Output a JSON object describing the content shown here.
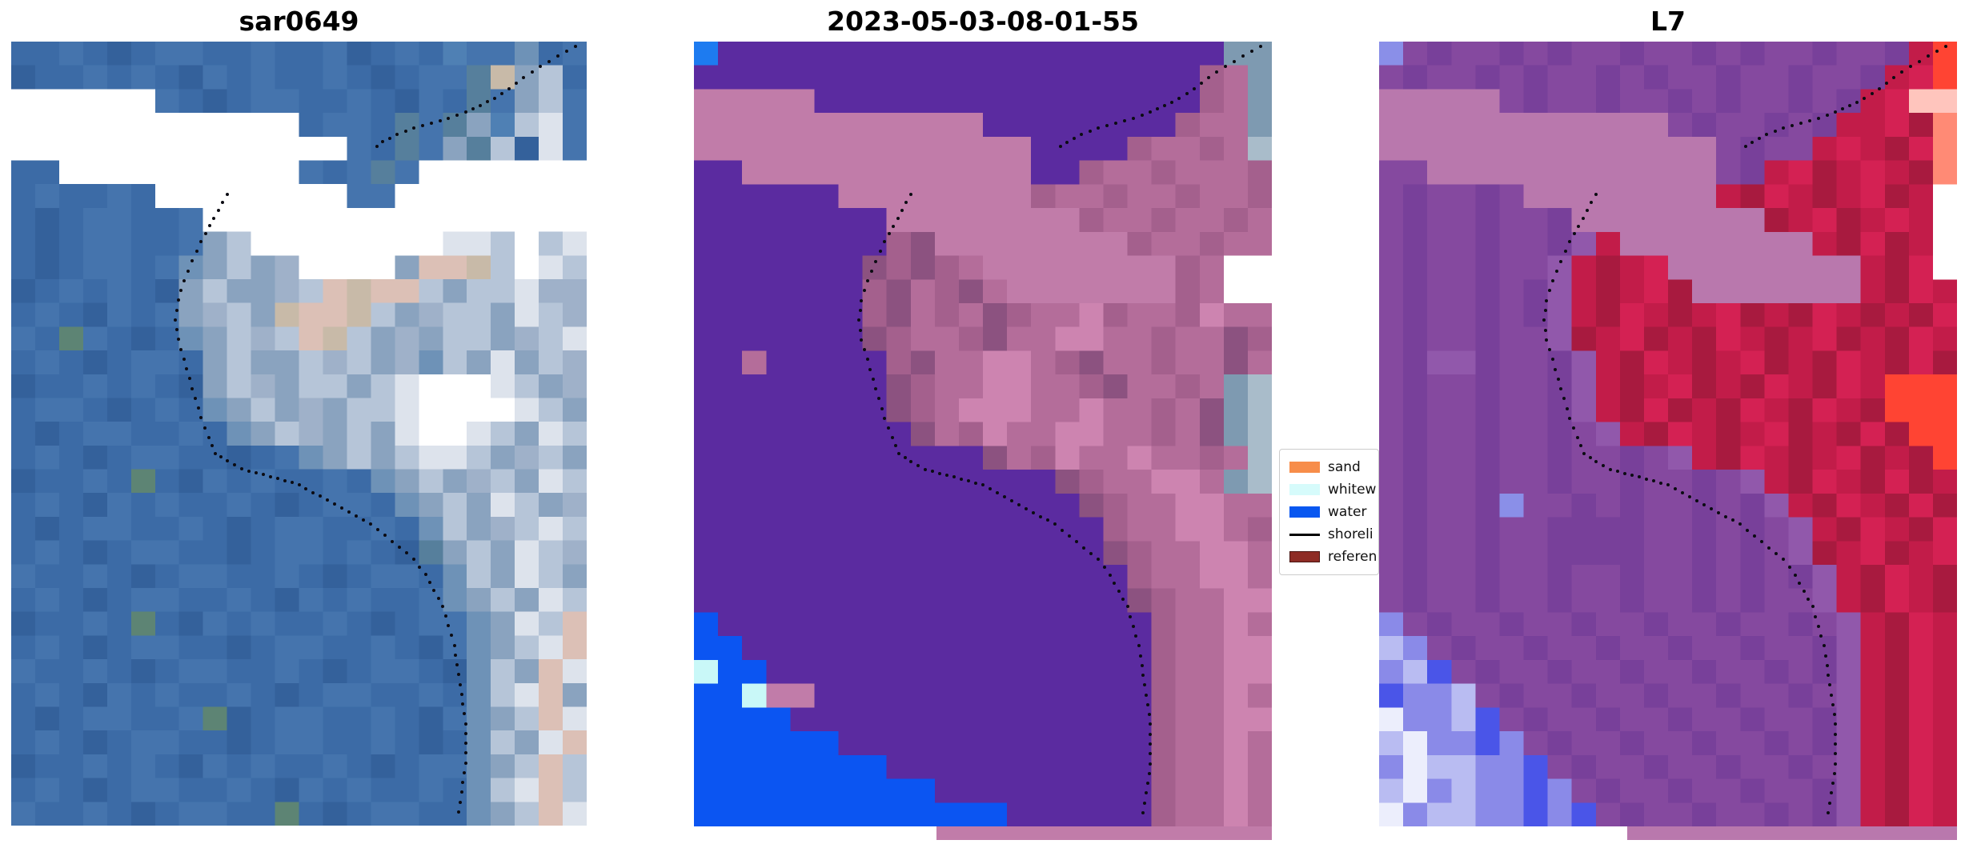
{
  "figure": {
    "background": "#ffffff"
  },
  "shoreline_color": "#0b0b12",
  "palette": {
    ".": "#ffffff",
    "j": "#ffffff",
    "a": "#3c6ba6",
    "b": "#4574ad",
    "c": "#34619b",
    "d": "#4f80b4",
    "e": "#567f9c",
    "f": "#5d8474",
    "g": "#8aa3bf",
    "h": "#b6c5d8",
    "i": "#dde3ec",
    "k": "#c8baa8",
    "l": "#dcc0b6",
    "m": "#9fb1c9",
    "n": "#6e92b7",
    "P": "#5b2ba0",
    "B": "#0b55f2",
    "C": "#1d7bf0",
    "M": "#c17ca9",
    "N": "#a4608d",
    "O": "#b46d9a",
    "R": "#cd84b0",
    "S": "#8c5280",
    "T": "#7e9ab1",
    "U": "#a9bcca",
    "X": "#c9f8f8",
    "p": "#85499f",
    "q": "#78409a",
    "r": "#9158ab",
    "s": "#8a8fe8",
    "t": "#b978ad",
    "u": "#c21c49",
    "v": "#a81a3f",
    "w": "#d42153",
    "x": "#ff4433",
    "y": "#ff8a75",
    "z": "#ffc5bd",
    "1": "#4a55e8",
    "2": "#8a8ae8",
    "3": "#b9bcf2",
    "4": "#eceefc"
  },
  "shorelines": {
    "upper": [
      [
        98,
        0.6
      ],
      [
        95,
        1.8
      ],
      [
        92,
        3.2
      ],
      [
        89,
        4.6
      ],
      [
        86.5,
        6
      ],
      [
        84,
        7.2
      ],
      [
        81.5,
        8.2
      ],
      [
        79,
        9
      ],
      [
        76,
        9.8
      ],
      [
        73,
        10.4
      ],
      [
        70,
        11
      ],
      [
        67,
        11.8
      ],
      [
        64.5,
        12.8
      ],
      [
        62.5,
        14
      ]
    ],
    "main": [
      [
        37.5,
        19.5
      ],
      [
        36,
        21.5
      ],
      [
        34.5,
        23.5
      ],
      [
        33,
        25.5
      ],
      [
        31.5,
        28
      ],
      [
        30,
        30.5
      ],
      [
        29,
        33
      ],
      [
        28.5,
        35.5
      ],
      [
        29,
        38
      ],
      [
        30,
        40.5
      ],
      [
        31,
        43
      ],
      [
        32,
        45.5
      ],
      [
        33,
        48
      ],
      [
        34.3,
        50.5
      ],
      [
        35.5,
        52.5
      ],
      [
        37.5,
        53.5
      ],
      [
        40,
        54.5
      ],
      [
        42.5,
        55
      ],
      [
        45,
        55.5
      ],
      [
        47.5,
        56
      ],
      [
        50,
        56.5
      ],
      [
        52.5,
        57.5
      ],
      [
        55,
        58.5
      ],
      [
        57.5,
        59.5
      ],
      [
        60,
        60.5
      ],
      [
        62.5,
        61.5
      ],
      [
        65,
        63
      ],
      [
        67.5,
        64.5
      ],
      [
        70,
        66
      ],
      [
        72,
        68
      ],
      [
        73.5,
        70
      ],
      [
        75,
        72
      ],
      [
        76,
        74.5
      ],
      [
        77,
        77
      ],
      [
        77.5,
        79.5
      ],
      [
        78,
        82
      ],
      [
        78.5,
        84.5
      ],
      [
        79,
        87
      ],
      [
        79,
        89.5
      ],
      [
        79,
        92
      ],
      [
        78.5,
        94.5
      ],
      [
        78,
        97
      ],
      [
        77.5,
        99.5
      ]
    ]
  },
  "panels": [
    {
      "id": "sar0649",
      "title": "sar0649",
      "shorelines": [
        "upper",
        "main"
      ],
      "grid": [
        "aabacabbaabaabcabadbbnab",
        "caababacbabaabacabbekgha",
        "jjjjjjbacabbaabacbaebghb",
        "jjjjjjjjjjjjabbaebegdhib",
        "jjjjjjjjjjjjjjbaebgehcib",
        "aajjjjjjjjjjbabebjjjjjjj",
        "abaabajjjjjjjjbbjjjjjjjj",
        "acabbaabjjjjjjjjjjjjjjjj",
        "acabbaabghjjjjjjjjiihjhi",
        "acabbabnghgmjjjjgllkhjih",
        "cababacghggmhlkllhghhimm",
        "abacbabgmhgkllkhgmhhgihm",
        "bafbacanghmhlkhgmghhgmhi",
        "abacabbaghgghmhgmnhgighm",
        "caababacghmghhghijjjihgm",
        "abbacabanghgmghhijjjjihg",
        "acabbaabanghmghgijjihgih",
        "abacabbaacabnghghiihgmhg",
        "caabafacbabaabanghgmhgih",
        "abacbabaabacabbanghgihgm",
        "acabbaabacabbaabanhgmhih",
        "abacabbaacabbabaceghgihm",
        "baabacabbaabacabbanhgihg",
        "abacabbaabacbabaabnghgih",
        "caabafacbabaabacabbngihl",
        "abacabbaacabbaabacbnghil",
        "baabacabbaabacabbacnhgli",
        "abacbabaabacabbaabanhilg",
        "acabbaabfcabbaabacbnghli",
        "abacabbaacabbaabacanhgil",
        "caababacbabaabacabbnghlh",
        "abacabbaabacbabaabanhilh",
        "baabacabbaafacabbaanghli"
      ]
    },
    {
      "id": "classified",
      "title": "2023-05-03-08-01-55",
      "shorelines": [
        "upper",
        "main"
      ],
      "bottom_strip": {
        "start_pct": 42,
        "color": "M"
      },
      "grid": [
        "CPPPPPPPPPPPPPPPPPPPPPTT",
        "PPPPPPPPPPPPPPPPPPPPPNOT",
        "MMMMMPPPPPPPPPPPPPPPPNOT",
        "MMMMMMMMMMMMPPPPPPPPNOOT",
        "MMMMMMMMMMMMMMPPPPNOONOU",
        "PPMMMMMMMMMMMMPPNOONOOON",
        "PPPPPPMMMMMMMMNOONOONOON",
        "PPPPPPPPMMMMMMMMNOONOONO",
        "PPPPPPPPNSMMMMMMMMNOONOO",
        "PPPPPPPSNSNOMMMMMMMMNO..",
        "PPPPPPPNSONSOMMMMMMMNO..",
        "PPPPPPPNSONOSNOORNOONROO",
        "PPPPPPPSNOONSOORROONOOSN",
        "PPOPPPPPNSOORRONSOONOOSO",
        "PPPPPPPPSNOORROONSOONOTU",
        "PPPPPPPPSNORRROOROONOSTU",
        "PPPPPPPPPSONROORROONOSTU",
        "PPPPPPPPPPPPSONROOROONOU",
        "PPPPPPPPPPPPPPPSNOORROTU",
        "PPPPPPPPPPPPPPPPSNOORROO",
        "PPPPPPPPPPPPPPPPPNOORRON",
        "PPPPPPPPPPPPPPPPPSNOORRO",
        "PPPPPPPPPPPPPPPPPPNOORRO",
        "PPPPPPPPPPPPPPPPPPSNOORR",
        "BPPPPPPPPPPPPPPPPPPNOORO",
        "BBPPPPPPPPPPPPPPPPPNOORR",
        "XBBPPPPPPPPPPPPPPPPNOORR",
        "BBXMMPPPPPPPPPPPPPPNOORO",
        "BBBBPPPPPPPPPPPPPPPNOORR",
        "BBBBBBPPPPPPPPPPPPPNOORO",
        "BBBBBBBBPPPPPPPPPPPNOORO",
        "BBBBBBBBBBPPPPPPPPPNOORO",
        "BBBBBBBBBBBBBPPPPPPNOORO"
      ]
    },
    {
      "id": "l7",
      "title": "L7",
      "shorelines": [
        "upper",
        "main"
      ],
      "bottom_strip": {
        "start_pct": 43,
        "color": "t"
      },
      "grid": [
        "spqppqpqppqppqpqppqppqux",
        "pqppqpqppqpqppqppqppquwx",
        "tttttpqppqppqpqppqpquwzz",
        "ttttttttttttpqppqpquuwvy",
        "ttttttttttttttpqppuwuvwy",
        "ppttttttttttttpquwvuwuvy",
        "pqppqpttttttttuvwuvuwvu.",
        "pqppqppqttttttttvuwvuwu.",
        "pqppqppqruttttttttuvwvu.",
        "pqppqppruvuwttttttttuvw.",
        "pqppqpqruvuwvtttttttuvwu",
        "pqppqpqruvwuvuwvuvwuvuvw",
        "pqppqpprvuwvuvwuvuwvuvwu",
        "pqrrqppqruvwuvuwvuvwuvwv",
        "pqppqppqruvuwvuvwuvwuxxx",
        "pqppqppqruvwvuvwuvwuvxxx",
        "pqppqppqpruvwuvuwvuvwvxx",
        "pqppqppqppqpruvwuvuwvuvx",
        "pqppqppqppqppqpruvwuvwvu",
        "pqppqsppqpqppqpqruvwuvwv",
        "pqppqppqqqqppqpqpruvwuvw",
        "pqppqppqqqqppqpqprvuwvuw",
        "pqppqppqppqppqpqpqruvwuv",
        "pqppqppqppqppqpqppruvwuv",
        "2pqppqppqppqppqppqpruvwu",
        "32pqppqppqppqppqppqruvwu",
        "231pqppqppqppqppqpqruvwu",
        "1223pqppqppqppqppqpruvwu",
        "42231pqppqppqppqppqruvwu",
        "342212pqppqppqppqpqruvwu",
        "2433221pqppqppqppqpruvwu",
        "34232212pqppqppqppqruvwu",
        "423322121pqppqppqpqruvwu"
      ]
    }
  ],
  "legend": {
    "items": [
      {
        "label": "sand",
        "type": "patch",
        "swatch": "#f78d4a"
      },
      {
        "label": "whitew",
        "type": "patch",
        "swatch": "#d6fbfb"
      },
      {
        "label": "water",
        "type": "patch",
        "swatch": "#0857f0"
      },
      {
        "label": "shoreli",
        "type": "line",
        "swatch": "#000000"
      },
      {
        "label": "referen",
        "type": "patch",
        "swatch": "#8e2c25",
        "border": "#4a1512"
      }
    ]
  },
  "chart_data": {
    "type": "heatmap",
    "note": "Three-panel satellite shoreline figure: SAR RGB image, classified overlay image, Landsat-7 image; dotted black shoreline drawn on each panel",
    "panel_titles": [
      "sar0649",
      "2023-05-03-08-01-55",
      "L7"
    ],
    "legend_entries": [
      "sand",
      "whitew",
      "water",
      "shoreli",
      "referen"
    ],
    "legend_position": "right of middle panel, vertically centered",
    "axes": "none (image panels, no ticks or axis labels)"
  }
}
